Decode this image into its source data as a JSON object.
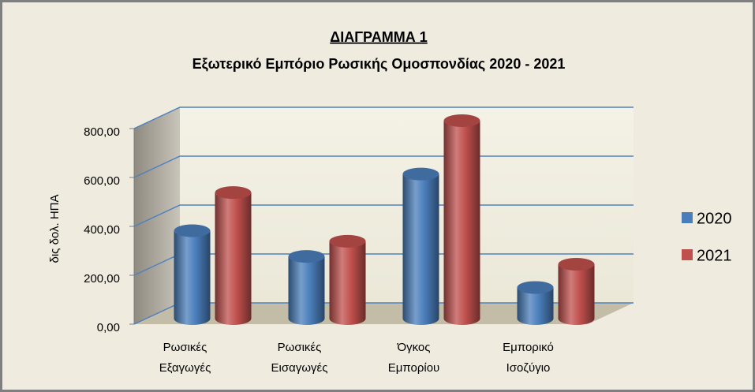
{
  "chart_data": {
    "type": "bar3d",
    "title": "ΔΙΑΓΡΑΜΜΑ 1",
    "subtitle": "Εξωτερικό Εμπόριο Ρωσικής Ομοσπονδίας 2020 - 2021",
    "y_label": "δις δολ. ΗΠΑ",
    "categories": [
      "Ρωσικές Εξαγωγές",
      "Ρωσικές Εισαγωγές",
      "Όγκος Εμπορίου",
      "Εμπορικό Ισοζύγιο"
    ],
    "series": [
      {
        "name": "2020",
        "color": "#4a7ebb",
        "values": [
          337,
          232,
          569,
          105
        ]
      },
      {
        "name": "2021",
        "color": "#c0504d",
        "values": [
          493,
          294,
          787,
          200
        ]
      }
    ],
    "ylim": [
      0,
      800
    ],
    "yticks": [
      {
        "value": 0,
        "label": "0,00"
      },
      {
        "value": 200,
        "label": "200,00"
      },
      {
        "value": 400,
        "label": "400,00"
      },
      {
        "value": 600,
        "label": "600,00"
      },
      {
        "value": 800,
        "label": "800,00"
      }
    ],
    "grid": true,
    "legend": "right"
  }
}
